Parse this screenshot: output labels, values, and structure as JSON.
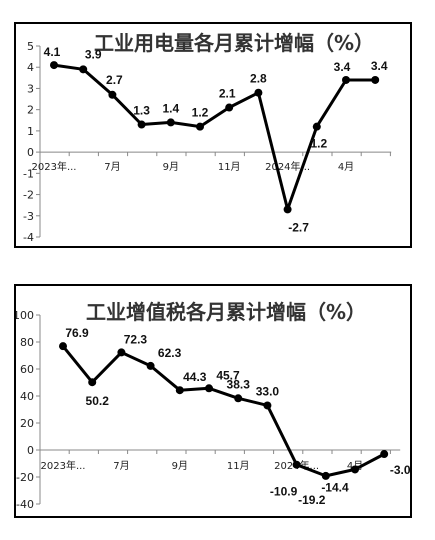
{
  "chart_data": [
    {
      "type": "line",
      "title": "工业用电量各月累计增幅（%）",
      "categories": [
        "2023年...",
        "",
        "7月",
        "",
        "9月",
        "",
        "11月",
        "",
        "2024年...",
        "",
        "4月",
        ""
      ],
      "values": [
        4.1,
        3.9,
        2.7,
        1.3,
        1.4,
        1.2,
        2.1,
        2.8,
        -2.7,
        1.2,
        3.4,
        3.4
      ],
      "value_labels": [
        "4.1",
        "3.9",
        "2.7",
        "1.3",
        "1.4",
        "1.2",
        "2.1",
        "2.8",
        "-2.7",
        "1.2",
        "3.4",
        "3.4"
      ],
      "ylim": [
        -4,
        5
      ],
      "yticks": [
        "5",
        "4",
        "3",
        "2",
        "1",
        "0",
        "-1",
        "-2",
        "-3",
        "-4"
      ],
      "line_color": "#000000",
      "grid": false
    },
    {
      "type": "line",
      "title": "工业增值税各月累计增幅（%）",
      "categories": [
        "2023年...",
        "",
        "7月",
        "",
        "9月",
        "",
        "11月",
        "",
        "2024年...",
        "",
        "4月",
        ""
      ],
      "values": [
        76.9,
        50.2,
        72.3,
        62.3,
        44.3,
        45.7,
        38.3,
        33.0,
        -10.9,
        -19.2,
        -14.4,
        -3.0
      ],
      "value_labels": [
        "76.9",
        "50.2",
        "72.3",
        "62.3",
        "44.3",
        "45.7",
        "38.3",
        "33.0",
        "-10.9",
        "-19.2",
        "-14.4",
        "-3.0"
      ],
      "ylim": [
        -40,
        100
      ],
      "yticks": [
        "100",
        "80",
        "60",
        "40",
        "20",
        "0",
        "-20",
        "-40"
      ],
      "line_color": "#000000",
      "grid": false
    }
  ]
}
